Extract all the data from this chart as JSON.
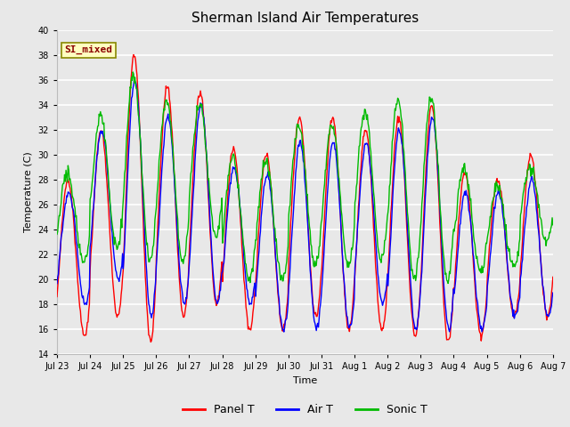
{
  "title": "Sherman Island Air Temperatures",
  "xlabel": "Time",
  "ylabel": "Temperature (C)",
  "ylim": [
    14,
    40
  ],
  "annotation_text": "SI_mixed",
  "annotation_color": "#8B0000",
  "annotation_bg": "#FFFFC0",
  "colors": {
    "panel": "#FF0000",
    "air": "#0000FF",
    "sonic": "#00BB00"
  },
  "x_tick_labels": [
    "Jul 23",
    "Jul 24",
    "Jul 25",
    "Jul 26",
    "Jul 27",
    "Jul 28",
    "Jul 29",
    "Jul 30",
    "Jul 31",
    "Aug 1",
    "Aug 2",
    "Aug 3",
    "Aug 4",
    "Aug 5",
    "Aug 6",
    "Aug 7"
  ],
  "background_color": "#E8E8E8",
  "grid_color": "#FFFFFF",
  "line_width": 1.0,
  "title_fontsize": 11,
  "label_fontsize": 8,
  "tick_fontsize": 7,
  "n_days": 15,
  "ppd": 48,
  "day_peak_panel": [
    28,
    32,
    38,
    35.5,
    35,
    30.5,
    30,
    33,
    33,
    32,
    33,
    34,
    28.5,
    28,
    30
  ],
  "day_trough_panel": [
    15.5,
    17,
    15,
    17,
    18,
    16,
    16,
    17,
    16,
    16,
    15.5,
    15,
    15.5,
    17,
    17
  ],
  "day_peak_air": [
    27,
    32,
    36,
    33,
    34,
    29,
    28.5,
    31,
    31,
    31,
    32,
    33,
    27,
    27,
    28
  ],
  "day_trough_air": [
    18,
    20,
    17,
    18,
    18,
    18,
    16,
    16,
    16,
    18,
    16,
    16,
    16,
    17,
    17
  ],
  "day_peak_sonic": [
    28.5,
    33,
    36.5,
    34.5,
    34,
    30,
    29.5,
    32.5,
    32.5,
    33.5,
    34.5,
    34.5,
    29,
    27.5,
    29
  ],
  "day_trough_sonic": [
    21.5,
    22.5,
    21.5,
    21.5,
    23.5,
    20,
    20,
    21,
    21,
    21.5,
    20,
    20,
    20.5,
    21,
    23
  ]
}
